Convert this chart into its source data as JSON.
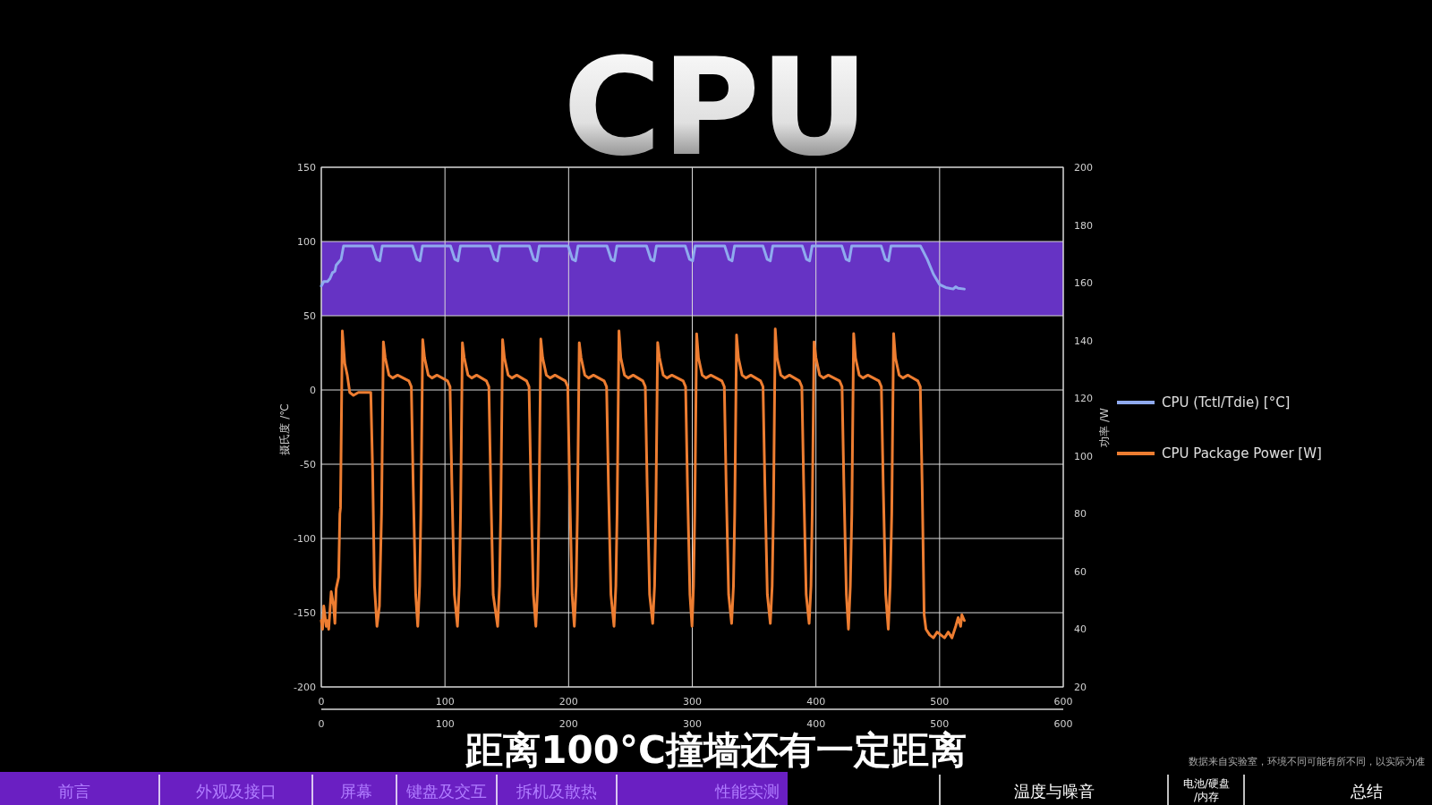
{
  "chart_data": {
    "type": "line",
    "title": "CPU",
    "ylabel": "摄氏度 /℃",
    "y2label": "功率 /W",
    "xlim": [
      0,
      600
    ],
    "xticks": [
      0,
      100,
      200,
      300,
      400,
      500,
      600
    ],
    "x2lim": [
      0,
      600
    ],
    "x2ticks": [
      0,
      100,
      200,
      300,
      400,
      500,
      600
    ],
    "ylim": [
      -200,
      150
    ],
    "yticks": [
      -200,
      -150,
      -100,
      -50,
      0,
      50,
      100,
      150
    ],
    "y2lim": [
      20,
      200
    ],
    "y2ticks": [
      20,
      40,
      60,
      80,
      100,
      120,
      140,
      160,
      180,
      200
    ],
    "grid": true,
    "legend": "right",
    "bands": [
      {
        "axis": "y",
        "from": 50,
        "to": 100,
        "color": "#6633c4"
      }
    ],
    "series": [
      {
        "name": "CPU (Tctl/Tdie) [°C]",
        "color": "#8faaee",
        "axis": "y",
        "x": [
          0,
          2,
          5,
          7,
          9,
          11,
          12,
          14,
          16,
          18,
          41.3,
          44.8,
          47.3,
          49.3,
          73.8,
          77.3,
          79.8,
          81.8,
          104.5,
          108,
          110.5,
          112.5,
          136.5,
          140,
          142.5,
          144.5,
          168.3,
          171.8,
          174.3,
          176.3,
          199.6,
          203.1,
          205.6,
          207.6,
          231,
          234.5,
          237,
          239,
          263,
          266.5,
          269,
          271,
          294.3,
          297.8,
          300.3,
          302.3,
          326.2,
          329.7,
          332.2,
          334.2,
          357.1,
          360.6,
          363.1,
          365.1,
          388.9,
          392.4,
          394.9,
          396.9,
          420.9,
          424.4,
          426.9,
          428.9,
          452.7,
          456.2,
          458.7,
          460.7,
          484.5,
          490,
          495,
          500,
          505,
          511,
          513,
          515,
          520
        ],
        "values": [
          70,
          73,
          73,
          75,
          79,
          80,
          84,
          86,
          88,
          97,
          97,
          88,
          87,
          97,
          97,
          88,
          87,
          97,
          97,
          88,
          87,
          97,
          97,
          88,
          87,
          97,
          97,
          88,
          87,
          97,
          97,
          88,
          87,
          97,
          97,
          88,
          87,
          97,
          97,
          88,
          87,
          97,
          97,
          88,
          87,
          97,
          97,
          88,
          87,
          97,
          97,
          88,
          87,
          97,
          97,
          88,
          87,
          97,
          97,
          88,
          87,
          97,
          97,
          88,
          87,
          97,
          97,
          88,
          78,
          71,
          69,
          68,
          69.5,
          68.5,
          68
        ]
      },
      {
        "name": "CPU Package Power [W]",
        "color": "#ed7d31",
        "axis": "y2",
        "x": [
          0,
          1,
          2,
          4,
          5,
          6,
          8,
          10,
          11,
          12,
          14,
          15,
          15.5,
          17,
          19,
          21,
          23,
          26,
          30,
          35,
          40,
          41.5,
          43,
          45,
          47,
          48.7,
          50.2,
          51.7,
          54.7,
          57.7,
          61.7,
          70.8,
          72.8,
          74.3,
          76.3,
          78,
          79.5,
          80.5,
          82,
          83.5,
          86.5,
          89.5,
          93.5,
          102.1,
          104.1,
          105.6,
          107.6,
          110.1,
          111.6,
          112.6,
          114.1,
          115.6,
          118.6,
          121.6,
          125.6,
          133.5,
          135.5,
          137,
          139,
          142.6,
          144.1,
          145.1,
          146.6,
          148.1,
          151.1,
          154.1,
          158.1,
          166,
          168,
          169.5,
          171.5,
          173.5,
          175,
          176,
          177.5,
          179,
          182,
          185,
          189,
          197.3,
          199.3,
          200.8,
          202.8,
          204.6,
          206.1,
          207.1,
          208.6,
          210.1,
          213.1,
          216.1,
          220.1,
          228.7,
          230.7,
          232.2,
          234.2,
          236.7,
          238.2,
          239.2,
          240.7,
          242.2,
          245.2,
          248.2,
          252.2,
          260,
          262,
          263.5,
          265.5,
          268,
          269.5,
          270.5,
          272,
          273.5,
          276.5,
          279.5,
          283.5,
          292.6,
          294.6,
          296.1,
          298.1,
          299.8,
          301,
          302,
          303.5,
          305,
          308,
          311,
          315,
          323.9,
          325.9,
          327.4,
          329.4,
          331.8,
          333.3,
          334.3,
          335.8,
          337.3,
          340.3,
          343.3,
          347.3,
          355.2,
          357.2,
          358.7,
          360.7,
          363.1,
          364.6,
          365.6,
          367.1,
          368.6,
          371.6,
          374.6,
          378.6,
          386.6,
          388.6,
          390.1,
          392.1,
          394.5,
          396,
          397,
          398.5,
          400,
          403,
          406,
          410,
          419.1,
          421.1,
          422.6,
          424.6,
          426.3,
          427.8,
          429,
          430.5,
          432,
          435,
          438,
          442,
          450.9,
          452.9,
          454.4,
          456.4,
          458.5,
          460,
          461.3,
          462.8,
          464.3,
          467.3,
          470.3,
          474.3,
          482.4,
          484.4,
          485.9,
          487.5,
          489,
          492,
          495,
          498,
          501,
          504,
          507,
          510,
          513,
          515,
          517,
          518,
          520
        ],
        "values": [
          43,
          40,
          48,
          41,
          43,
          40,
          53,
          48,
          42,
          54,
          58,
          80,
          82,
          143.3,
          132,
          128,
          122,
          121,
          122,
          122,
          122,
          95,
          55,
          41,
          48,
          80,
          139.5,
          134,
          128,
          127,
          128,
          126,
          124,
          90,
          52,
          41,
          55,
          80,
          140.3,
          134,
          128,
          127,
          128,
          126,
          124,
          90,
          52,
          41,
          55,
          80,
          139.2,
          134,
          128,
          127,
          128,
          126,
          124,
          90,
          52,
          41,
          55,
          80,
          140.3,
          134,
          128,
          127,
          128,
          126,
          124,
          90,
          52,
          41,
          55,
          80,
          140.5,
          134,
          128,
          127,
          128,
          126,
          124,
          90,
          52,
          41,
          55,
          80,
          139.2,
          134,
          128,
          127,
          128,
          126,
          124,
          90,
          52,
          41,
          55,
          80,
          143.3,
          134,
          128,
          127,
          128,
          126,
          124,
          90,
          52,
          42,
          55,
          80,
          139.3,
          134,
          128,
          127,
          128,
          126,
          124,
          90,
          52,
          41,
          55,
          80,
          142.3,
          134,
          128,
          127,
          128,
          126,
          124,
          90,
          52,
          42,
          55,
          80,
          141.9,
          134,
          128,
          127,
          128,
          126,
          124,
          90,
          52,
          42,
          55,
          80,
          144,
          134,
          128,
          127,
          128,
          126,
          124,
          90,
          52,
          42,
          55,
          80,
          139.5,
          134,
          128,
          127,
          128,
          126,
          124,
          90,
          52,
          40,
          55,
          80,
          142.4,
          134,
          128,
          127,
          128,
          126,
          124,
          90,
          52,
          40,
          55,
          80,
          142.4,
          134,
          128,
          127,
          128,
          126,
          124,
          90,
          45,
          40,
          38,
          37,
          39,
          38,
          37,
          39,
          37,
          41,
          44,
          41,
          45,
          43
        ]
      }
    ],
    "annotations": [
      "距离100°C撞墙还有一定距离",
      "前言",
      "外观及接口",
      "屏幕",
      "键盘及交互",
      "拆机及散热",
      "性能实测",
      "温度与噪音",
      "电池/硬盘/内存",
      "总结",
      "数据来自实验室，环境不同可能有所不同，以实际为准"
    ]
  }
}
